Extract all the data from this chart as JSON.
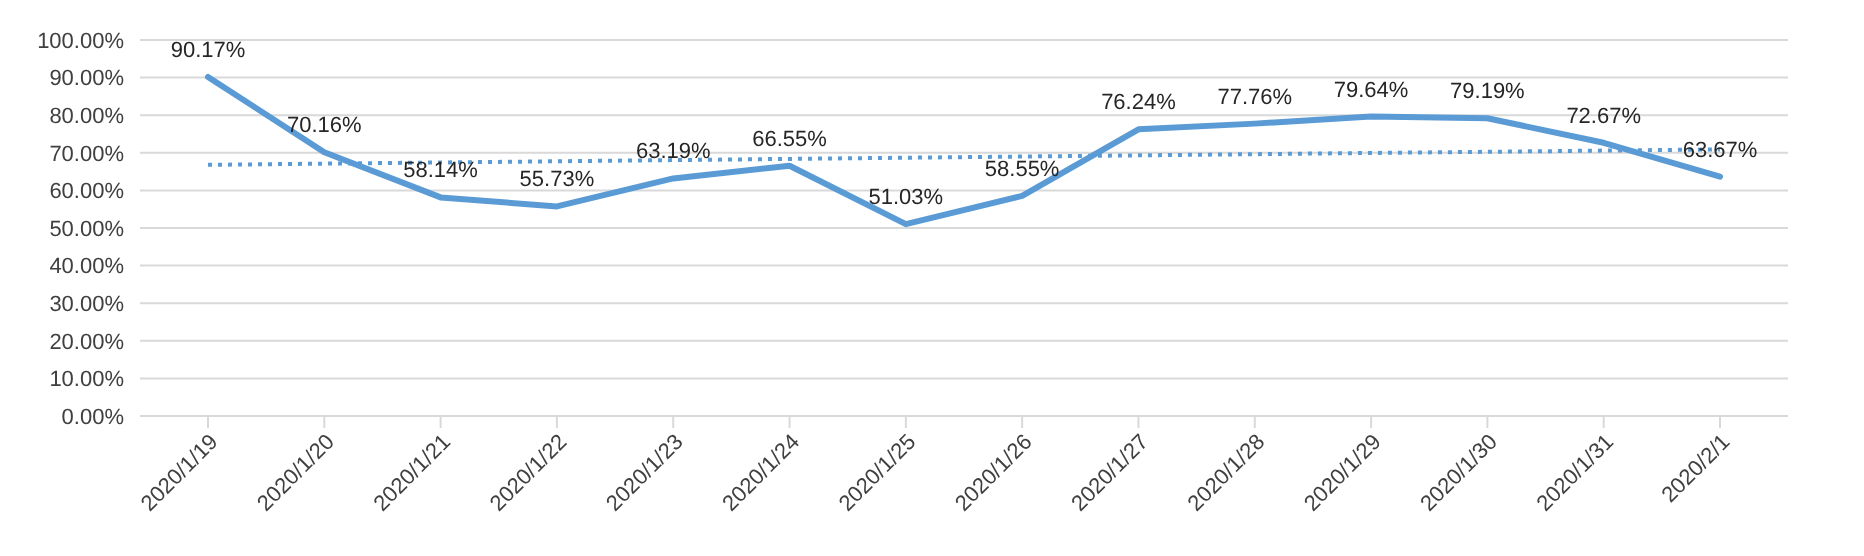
{
  "chart_data": {
    "type": "line",
    "categories": [
      "2020/1/19",
      "2020/1/20",
      "2020/1/21",
      "2020/1/22",
      "2020/1/23",
      "2020/1/24",
      "2020/1/25",
      "2020/1/26",
      "2020/1/27",
      "2020/1/28",
      "2020/1/29",
      "2020/1/30",
      "2020/1/31",
      "2020/2/1"
    ],
    "series": [
      {
        "color": "#5b9bd5",
        "values": [
          90.17,
          70.16,
          58.14,
          55.73,
          63.19,
          66.55,
          51.03,
          58.55,
          76.24,
          77.76,
          79.64,
          79.19,
          72.67,
          63.67
        ],
        "value_labels": [
          "90.17%",
          "70.16%",
          "58.14%",
          "55.73%",
          "63.19%",
          "66.55%",
          "51.03%",
          "58.55%",
          "76.24%",
          "77.76%",
          "79.64%",
          "79.19%",
          "72.67%",
          "63.67%"
        ],
        "line_style": "solid"
      },
      {
        "type": "line",
        "color": "#5b9bd5",
        "x": [
          "2020/1/19",
          "2020/2/1"
        ],
        "values": [
          66.8,
          70.9
        ],
        "line_style": "dotted"
      }
    ],
    "ylim": [
      0,
      100
    ],
    "yticks": [
      {
        "value": 0,
        "label": "0.00%"
      },
      {
        "value": 10,
        "label": "10.00%"
      },
      {
        "value": 20,
        "label": "20.00%"
      },
      {
        "value": 30,
        "label": "30.00%"
      },
      {
        "value": 40,
        "label": "40.00%"
      },
      {
        "value": 50,
        "label": "50.00%"
      },
      {
        "value": 60,
        "label": "60.00%"
      },
      {
        "value": 70,
        "label": "70.00%"
      },
      {
        "value": 80,
        "label": "80.00%"
      },
      {
        "value": 90,
        "label": "90.00%"
      },
      {
        "value": 100,
        "label": "100.00%"
      }
    ],
    "grid": "y",
    "legend": false,
    "marker": "none"
  }
}
